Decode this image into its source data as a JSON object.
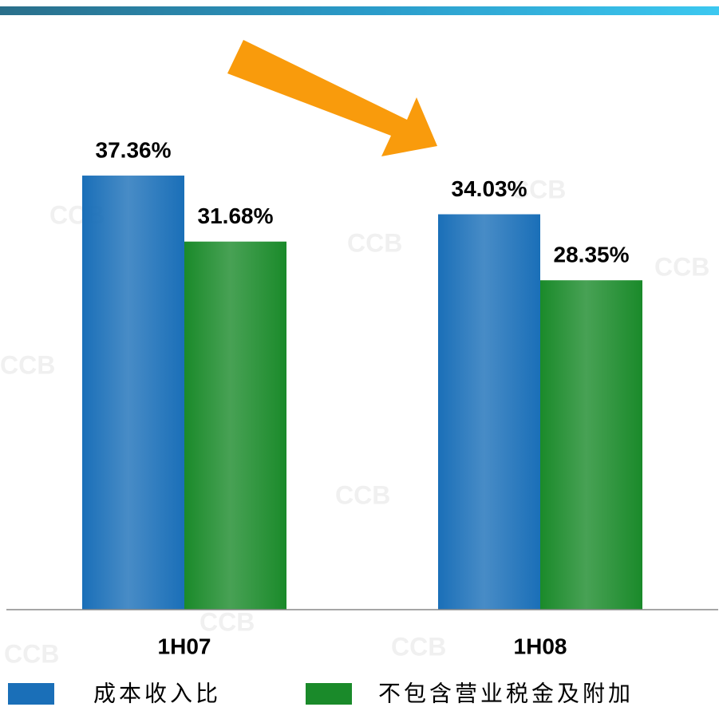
{
  "chart_data": {
    "type": "bar",
    "watermark": "CCB",
    "categories": [
      "1H07",
      "1H08"
    ],
    "series": [
      {
        "name": "成本收入比",
        "color": "#1a6fb8",
        "values": [
          37.36,
          34.03
        ],
        "value_labels": [
          "37.36%",
          "34.03%"
        ]
      },
      {
        "name": "不包含营业税金及附加",
        "color": "#1a8a2a",
        "values": [
          31.68,
          28.35
        ],
        "value_labels": [
          "31.68%",
          "28.35%"
        ]
      }
    ],
    "ylim": [
      0,
      50
    ]
  }
}
